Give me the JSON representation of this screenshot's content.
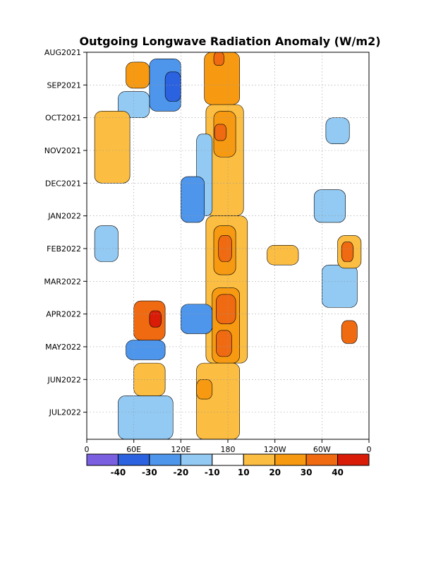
{
  "chart_data": {
    "type": "heatmap",
    "title": "Outgoing Longwave Radiation Anomaly (W/m2)",
    "subtitle": "",
    "xlabel": "",
    "ylabel": "",
    "x_ticks": [
      "0",
      "60E",
      "120E",
      "180",
      "120W",
      "60W",
      "0"
    ],
    "x_range_deg": [
      0,
      360
    ],
    "y_ticks": [
      "AUG2021",
      "SEP2021",
      "OCT2021",
      "NOV2021",
      "DEC2021",
      "JAN2022",
      "FEB2022",
      "MAR2022",
      "APR2022",
      "MAY2022",
      "JUN2022",
      "JUL2022"
    ],
    "colorbar": {
      "bins": [
        {
          "min": null,
          "max": -40,
          "color": "#7a5fe0"
        },
        {
          "min": -40,
          "max": -30,
          "color": "#2b62e0"
        },
        {
          "min": -30,
          "max": -20,
          "color": "#4e96ec"
        },
        {
          "min": -20,
          "max": -10,
          "color": "#92caf4"
        },
        {
          "min": -10,
          "max": 10,
          "color": "#ffffff"
        },
        {
          "min": 10,
          "max": 20,
          "color": "#fbbd42"
        },
        {
          "min": 20,
          "max": 30,
          "color": "#f79a12"
        },
        {
          "min": 30,
          "max": 40,
          "color": "#f06a12"
        },
        {
          "min": 40,
          "max": null,
          "color": "#d81c08"
        }
      ],
      "labels": [
        "-40",
        "-30",
        "-20",
        "-10",
        "10",
        "20",
        "30",
        "40"
      ]
    },
    "grid": true,
    "anomaly_regions": [
      {
        "lon": [
          150,
          195
        ],
        "month": [
          0.0,
          1.6
        ],
        "value": 20
      },
      {
        "lon": [
          162,
          175
        ],
        "month": [
          0.0,
          0.4
        ],
        "value": 30
      },
      {
        "lon": [
          152,
          200
        ],
        "month": [
          1.6,
          5.0
        ],
        "value": 18
      },
      {
        "lon": [
          162,
          190
        ],
        "month": [
          1.8,
          3.2
        ],
        "value": 28
      },
      {
        "lon": [
          163,
          178
        ],
        "month": [
          2.2,
          2.7
        ],
        "value": 35
      },
      {
        "lon": [
          152,
          205
        ],
        "month": [
          5.0,
          9.5
        ],
        "value": 18
      },
      {
        "lon": [
          162,
          190
        ],
        "month": [
          5.3,
          6.8
        ],
        "value": 28
      },
      {
        "lon": [
          168,
          185
        ],
        "month": [
          5.6,
          6.4
        ],
        "value": 35
      },
      {
        "lon": [
          160,
          195
        ],
        "month": [
          7.2,
          9.5
        ],
        "value": 28
      },
      {
        "lon": [
          165,
          190
        ],
        "month": [
          7.4,
          8.3
        ],
        "value": 35
      },
      {
        "lon": [
          165,
          185
        ],
        "month": [
          8.5,
          9.3
        ],
        "value": 35
      },
      {
        "lon": [
          140,
          195
        ],
        "month": [
          9.5,
          11.9
        ],
        "value": 16
      },
      {
        "lon": [
          140,
          160
        ],
        "month": [
          10.0,
          10.6
        ],
        "value": 25
      },
      {
        "lon": [
          80,
          120
        ],
        "month": [
          0.2,
          1.8
        ],
        "value": -25
      },
      {
        "lon": [
          100,
          120
        ],
        "month": [
          0.6,
          1.5
        ],
        "value": -35
      },
      {
        "lon": [
          140,
          160
        ],
        "month": [
          2.5,
          5.0
        ],
        "value": -20
      },
      {
        "lon": [
          120,
          150
        ],
        "month": [
          3.8,
          5.2
        ],
        "value": -25
      },
      {
        "lon": [
          10,
          40
        ],
        "month": [
          5.3,
          6.4
        ],
        "value": -20
      },
      {
        "lon": [
          120,
          160
        ],
        "month": [
          7.7,
          8.6
        ],
        "value": -25
      },
      {
        "lon": [
          50,
          100
        ],
        "month": [
          8.8,
          9.4
        ],
        "value": -30
      },
      {
        "lon": [
          40,
          80
        ],
        "month": [
          1.2,
          2.0
        ],
        "value": -20
      },
      {
        "lon": [
          40,
          110
        ],
        "month": [
          10.5,
          11.9
        ],
        "value": -20
      },
      {
        "lon": [
          50,
          80
        ],
        "month": [
          0.3,
          1.1
        ],
        "value": 25
      },
      {
        "lon": [
          60,
          100
        ],
        "month": [
          7.6,
          8.8
        ],
        "value": 30
      },
      {
        "lon": [
          80,
          95
        ],
        "month": [
          7.9,
          8.4
        ],
        "value": 40
      },
      {
        "lon": [
          10,
          55
        ],
        "month": [
          1.8,
          4.0
        ],
        "value": 15
      },
      {
        "lon": [
          60,
          100
        ],
        "month": [
          9.5,
          10.5
        ],
        "value": 15
      },
      {
        "lon": [
          305,
          335
        ],
        "month": [
          2.0,
          2.8
        ],
        "value": -15
      },
      {
        "lon": [
          290,
          330
        ],
        "month": [
          4.2,
          5.2
        ],
        "value": -18
      },
      {
        "lon": [
          300,
          345
        ],
        "month": [
          6.5,
          7.8
        ],
        "value": -15
      },
      {
        "lon": [
          320,
          350
        ],
        "month": [
          5.6,
          6.6
        ],
        "value": 18
      },
      {
        "lon": [
          325,
          340
        ],
        "month": [
          5.8,
          6.4
        ],
        "value": 30
      },
      {
        "lon": [
          325,
          345
        ],
        "month": [
          8.2,
          8.9
        ],
        "value": 30
      },
      {
        "lon": [
          230,
          270
        ],
        "month": [
          5.9,
          6.5
        ],
        "value": 15
      }
    ]
  }
}
